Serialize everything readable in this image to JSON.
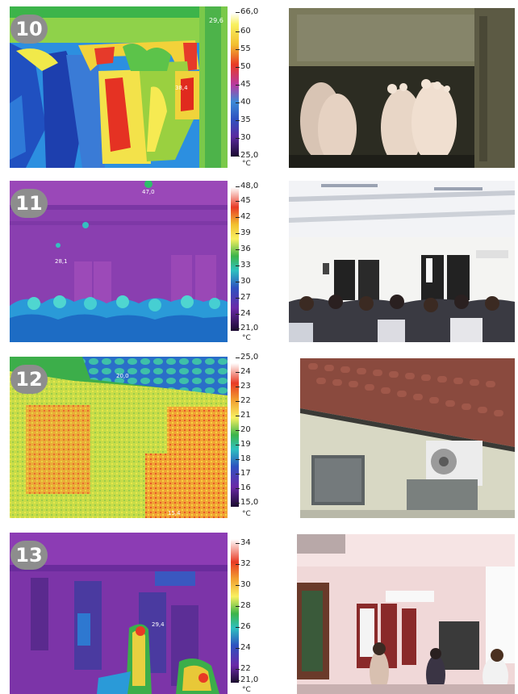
{
  "panels": [
    {
      "number": "10",
      "scale_labels": [
        "66,0",
        "60",
        "55",
        "50",
        "45",
        "40",
        "35",
        "30",
        "25,0"
      ],
      "unit": "°C",
      "overlay_values": [
        "29,6",
        "38,4"
      ]
    },
    {
      "number": "11",
      "scale_labels": [
        "48,0",
        "45",
        "42",
        "39",
        "36",
        "33",
        "30",
        "27",
        "24",
        "21,0"
      ],
      "unit": "°C",
      "overlay_values": [
        "47,0",
        "28,1"
      ]
    },
    {
      "number": "12",
      "scale_labels": [
        "25,0",
        "24",
        "23",
        "22",
        "21",
        "20",
        "19",
        "18",
        "17",
        "16",
        "15,0"
      ],
      "unit": "°C",
      "overlay_values": [
        "20,0",
        "15,4"
      ]
    },
    {
      "number": "13",
      "scale_labels": [
        "34",
        "32",
        "30",
        "28",
        "26",
        "24",
        "22",
        "21,0"
      ],
      "unit": "°C",
      "overlay_values": [
        "29,4"
      ]
    }
  ]
}
